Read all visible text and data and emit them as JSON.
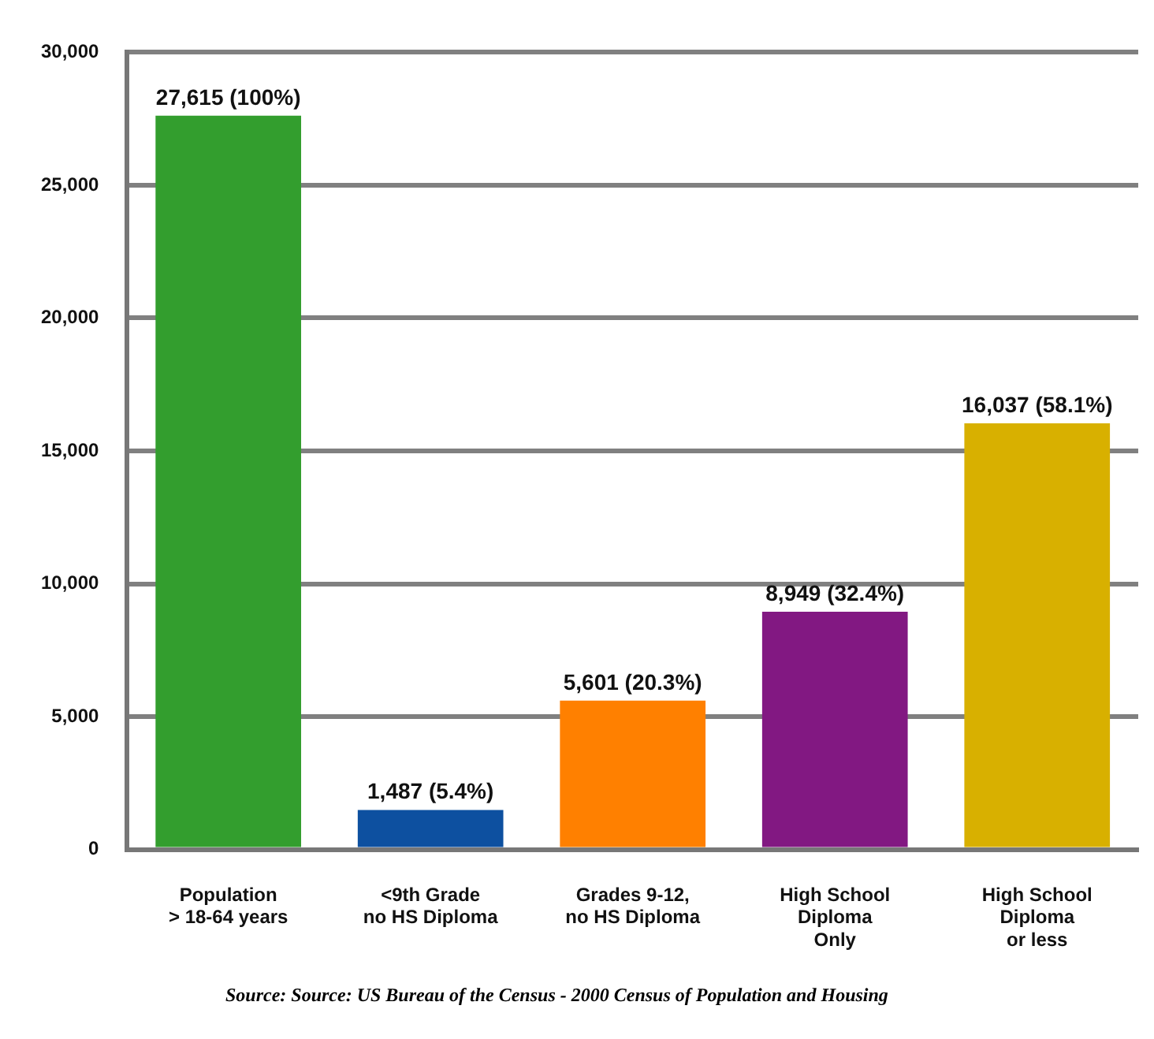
{
  "chart_data": {
    "type": "bar",
    "categories": [
      "Population\n> 18-64 years",
      "<9th Grade\nno HS Diploma",
      "Grades 9-12,\nno HS Diploma",
      "High School\nDiploma\nOnly",
      "High School\nDiploma\nor less"
    ],
    "values": [
      27615,
      1487,
      5601,
      8949,
      16037
    ],
    "colors": [
      "#339e2e",
      "#0d50a0",
      "#ff8000",
      "#821882",
      "#d8b000"
    ],
    "value_labels": [
      "27,615 (100%)",
      "1,487 (5.4%)",
      "5,601 (20.3%)",
      "8,949 (32.4%)",
      "16,037 (58.1%)"
    ],
    "ylim": [
      0,
      30000
    ],
    "yticks": [
      {
        "value": 0,
        "label": "0"
      },
      {
        "value": 5000,
        "label": "5,000"
      },
      {
        "value": 10000,
        "label": "10,000"
      },
      {
        "value": 15000,
        "label": "15,000"
      },
      {
        "value": 20000,
        "label": "20,000"
      },
      {
        "value": 25000,
        "label": "25,000"
      },
      {
        "value": 30000,
        "label": "30,000"
      }
    ],
    "grid": "y",
    "legend": false,
    "annotations": [
      "Source: Source: US Bureau of the Census - 2000 Census of Population and Housing"
    ]
  }
}
